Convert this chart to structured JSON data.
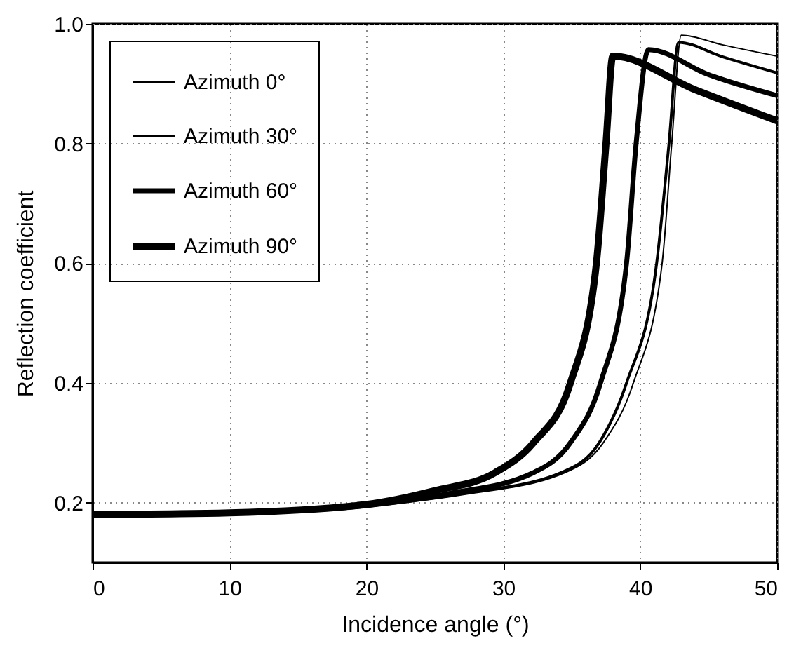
{
  "chart_data": {
    "type": "line",
    "xlabel": "Incidence angle (°)",
    "ylabel": "Reflection coefficient",
    "xlim": [
      0,
      50
    ],
    "ylim": [
      0.1,
      1.0
    ],
    "xticks": [
      0,
      10,
      20,
      30,
      40,
      50
    ],
    "yticks": [
      {
        "value": 0.2,
        "label": "0.2"
      },
      {
        "value": 0.4,
        "label": "0.4"
      },
      {
        "value": 0.6,
        "label": "0.6"
      },
      {
        "value": 0.8,
        "label": "0.8"
      },
      {
        "value": 1,
        "label": "1.0"
      }
    ],
    "grid": true,
    "legend": "top left",
    "series": [
      {
        "name": "Azimuth 0°",
        "color": "#000000",
        "x": [
          0,
          10,
          20,
          27,
          34.5,
          37.3,
          39.5,
          41.6,
          42.3,
          43.0,
          46,
          50
        ],
        "values": [
          0.18,
          0.183,
          0.194,
          0.213,
          0.25,
          0.3,
          0.4,
          0.6,
          0.8,
          0.981,
          0.965,
          0.946
        ]
      },
      {
        "name": "Azimuth 30°",
        "color": "#000000",
        "x": [
          0,
          10,
          20,
          27,
          34.2,
          37.0,
          39.0,
          41.2,
          42.1,
          42.8,
          46,
          50
        ],
        "values": [
          0.18,
          0.183,
          0.194,
          0.215,
          0.25,
          0.3,
          0.4,
          0.6,
          0.8,
          0.969,
          0.945,
          0.918
        ]
      },
      {
        "name": "Azimuth 60°",
        "color": "#000000",
        "x": [
          0,
          10,
          20,
          26,
          32.2,
          34.9,
          37.1,
          39.0,
          39.7,
          40.6,
          45,
          50
        ],
        "values": [
          0.18,
          0.183,
          0.195,
          0.215,
          0.25,
          0.3,
          0.4,
          0.6,
          0.8,
          0.957,
          0.915,
          0.88
        ]
      },
      {
        "name": "Azimuth 90°",
        "color": "#000000",
        "x": [
          0,
          10,
          20,
          25,
          29.4,
          32.2,
          34.9,
          36.8,
          37.5,
          38.0,
          44,
          50
        ],
        "values": [
          0.18,
          0.183,
          0.197,
          0.22,
          0.25,
          0.3,
          0.4,
          0.6,
          0.8,
          0.946,
          0.89,
          0.838
        ]
      }
    ]
  }
}
